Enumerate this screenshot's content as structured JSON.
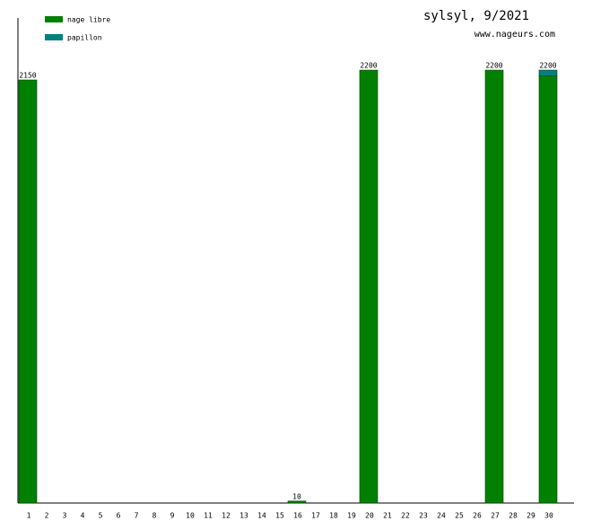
{
  "chart_data": {
    "type": "stacked-bar",
    "title": "sylsyl, 9/2021",
    "subtitle": "www.nageurs.com",
    "categories": [
      "1",
      "2",
      "3",
      "4",
      "5",
      "6",
      "7",
      "8",
      "9",
      "10",
      "11",
      "12",
      "13",
      "14",
      "15",
      "16",
      "17",
      "18",
      "19",
      "20",
      "21",
      "22",
      "23",
      "24",
      "25",
      "26",
      "27",
      "28",
      "29",
      "30"
    ],
    "series": [
      {
        "name": "nage libre",
        "color": "#008000",
        "values": [
          2150,
          0,
          0,
          0,
          0,
          0,
          0,
          0,
          0,
          0,
          0,
          0,
          0,
          0,
          0,
          10,
          0,
          0,
          0,
          2200,
          0,
          0,
          0,
          0,
          0,
          0,
          2200,
          0,
          0,
          2170
        ]
      },
      {
        "name": "papillon",
        "color": "#008080",
        "values": [
          0,
          0,
          0,
          0,
          0,
          0,
          0,
          0,
          0,
          0,
          0,
          0,
          0,
          0,
          0,
          0,
          0,
          0,
          0,
          0,
          0,
          0,
          0,
          0,
          0,
          0,
          0,
          0,
          0,
          30
        ]
      }
    ],
    "totals": [
      2150,
      null,
      null,
      null,
      null,
      null,
      null,
      null,
      null,
      null,
      null,
      null,
      null,
      null,
      null,
      10,
      null,
      null,
      null,
      2200,
      null,
      null,
      null,
      null,
      null,
      null,
      2200,
      null,
      null,
      2200
    ],
    "ylim": [
      0,
      2465
    ]
  }
}
